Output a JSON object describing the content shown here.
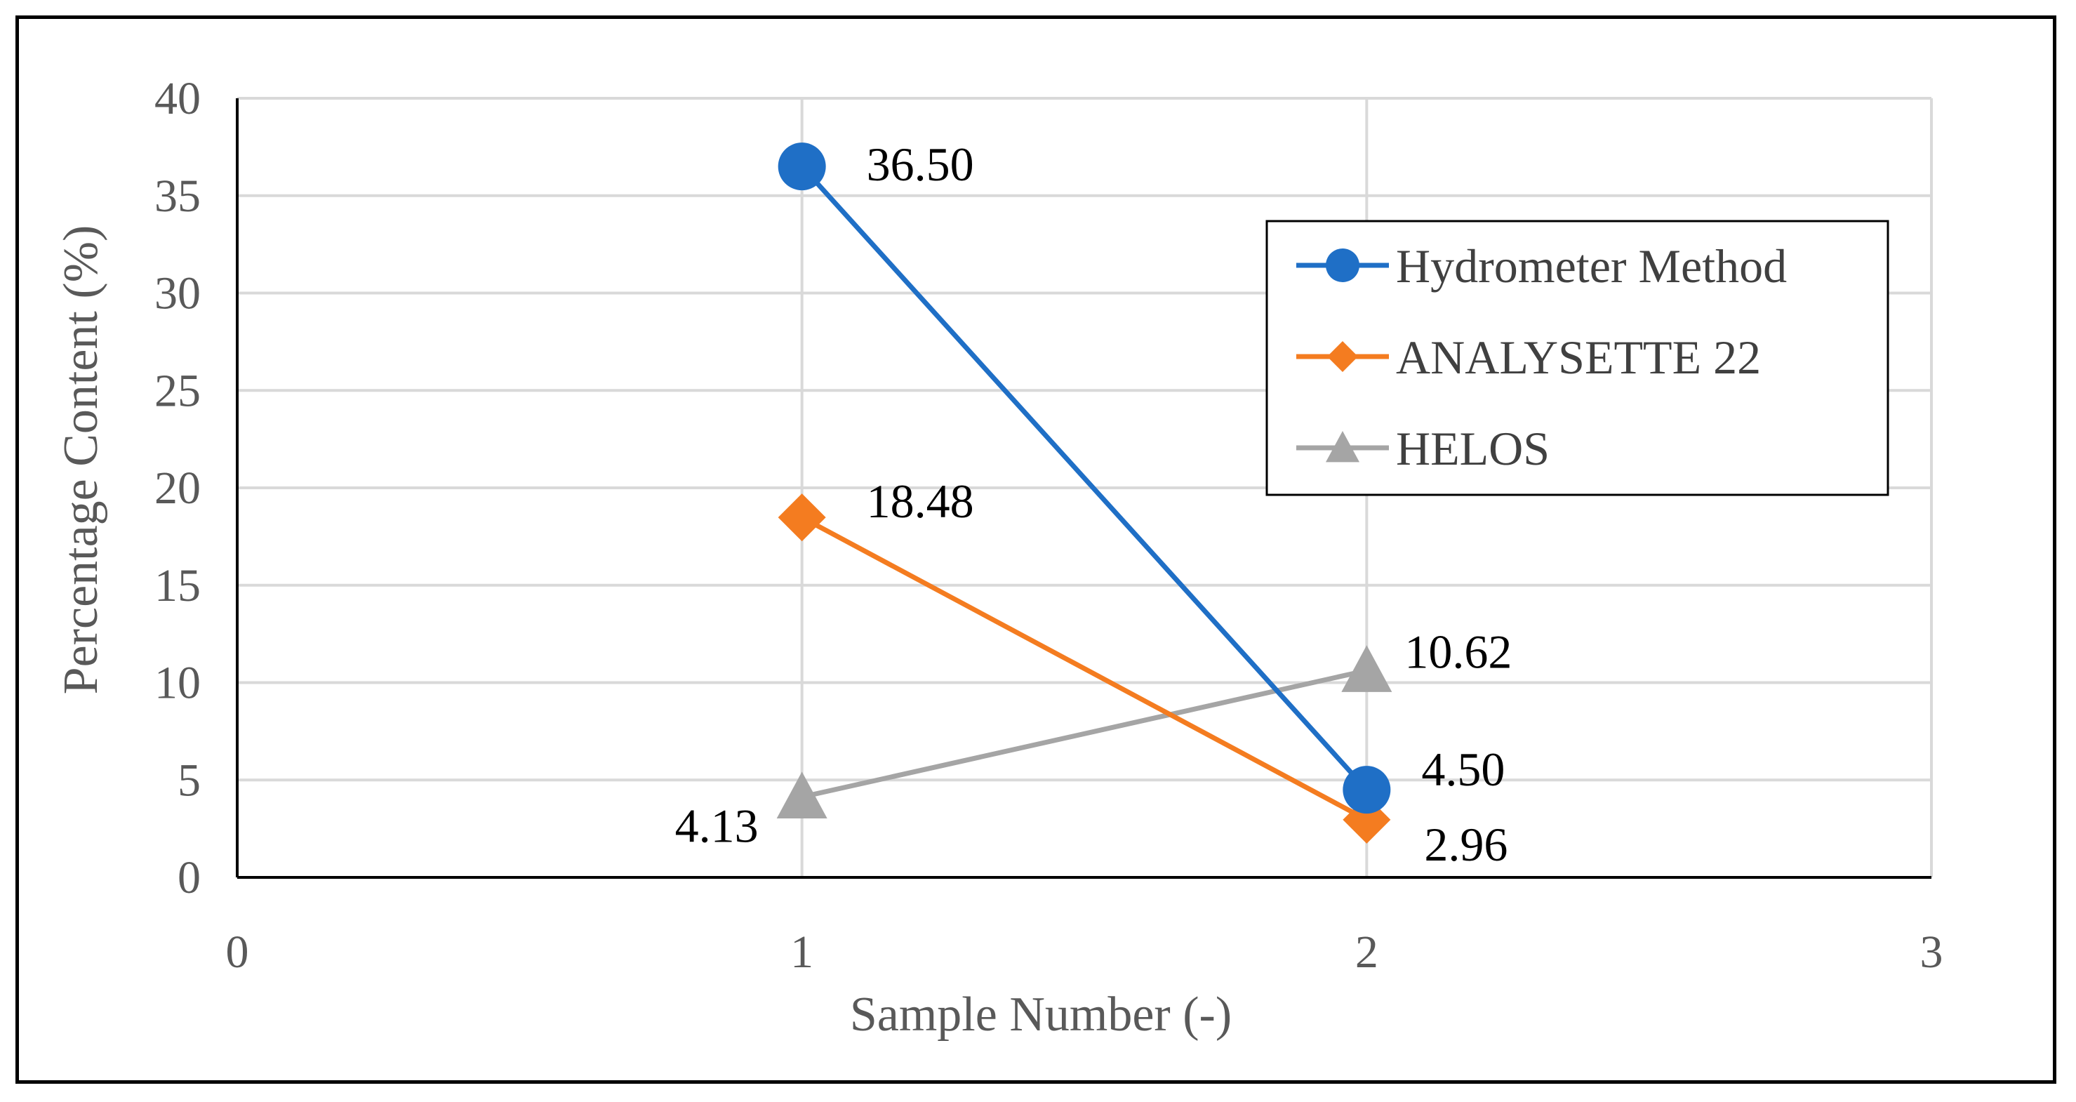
{
  "chart_data": {
    "type": "scatter",
    "title": "",
    "xlabel": "Sample Number (-)",
    "ylabel": "Percentage Content (%)",
    "xlim": [
      0,
      3
    ],
    "ylim": [
      0,
      40
    ],
    "xticks": [
      0,
      1,
      2,
      3
    ],
    "yticks": [
      0,
      5,
      10,
      15,
      20,
      25,
      30,
      35,
      40
    ],
    "x_tick_labels": [
      "0",
      "1",
      "2",
      "3"
    ],
    "y_tick_labels": [
      "0",
      "5",
      "10",
      "15",
      "20",
      "25",
      "30",
      "35",
      "40"
    ],
    "grid": true,
    "legend_position": "top-right",
    "series": [
      {
        "name": "Hydrometer Method",
        "marker": "circle",
        "color": "#1F6FC6",
        "x": [
          1,
          2
        ],
        "y": [
          36.5,
          4.5
        ],
        "labels": [
          "36.50",
          "4.50"
        ]
      },
      {
        "name": "ANALYSETTE 22",
        "marker": "diamond",
        "color": "#F47C20",
        "x": [
          1,
          2
        ],
        "y": [
          18.48,
          2.96
        ],
        "labels": [
          "18.48",
          "2.96"
        ]
      },
      {
        "name": "HELOS",
        "marker": "triangle",
        "color": "#A5A5A5",
        "x": [
          1,
          2
        ],
        "y": [
          4.13,
          10.62
        ],
        "labels": [
          "4.13",
          "10.62"
        ]
      }
    ]
  }
}
